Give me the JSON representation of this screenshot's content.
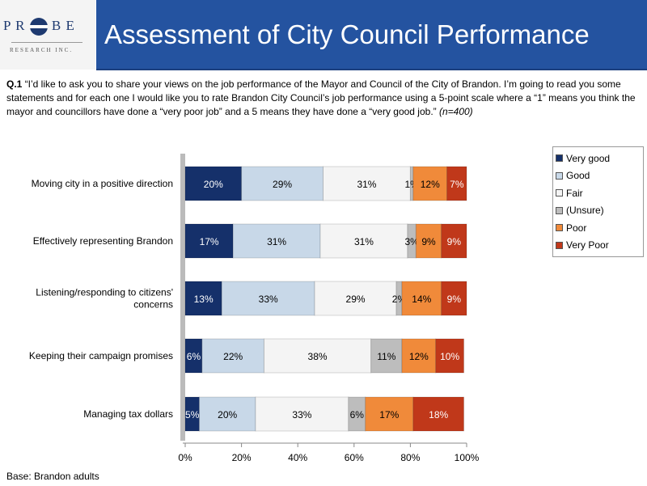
{
  "logo": {
    "word": "PR  BE",
    "sub": "RESEARCH INC."
  },
  "header": {
    "title": "Assessment of City Council Performance"
  },
  "question": {
    "label": "Q.1",
    "text": " “I’d like to ask you to share your views on the job performance of the Mayor and Council of the City of Brandon. I’m going to read you some statements and for each one I would like you to rate Brandon City Council’s job performance using a 5-point scale where a “1” means you think the mayor and councillors have done a “very poor job” and a 5 means they have done a “very good job.” ",
    "n": "(n=400)"
  },
  "base": "Base: Brandon adults",
  "chart_data": {
    "type": "bar",
    "orientation": "horizontal",
    "stacked": true,
    "categories": [
      "Moving city in a positive direction",
      "Effectively representing Brandon",
      "Listening/responding to citizens' concerns",
      "Keeping their campaign promises",
      "Managing tax dollars"
    ],
    "series": [
      {
        "name": "Very good",
        "color": "#15306a",
        "text": "#fff",
        "values": [
          20,
          17,
          13,
          6,
          5
        ]
      },
      {
        "name": "Good",
        "color": "#c8d8e8",
        "text": "#000",
        "values": [
          29,
          31,
          33,
          22,
          20
        ]
      },
      {
        "name": "Fair",
        "color": "#f4f4f4",
        "text": "#000",
        "values": [
          31,
          31,
          29,
          38,
          33
        ]
      },
      {
        "name": "(Unsure)",
        "color": "#bdbdbd",
        "text": "#000",
        "values": [
          1,
          3,
          2,
          11,
          6
        ]
      },
      {
        "name": "Poor",
        "color": "#f08a3a",
        "text": "#000",
        "values": [
          12,
          9,
          14,
          12,
          17
        ]
      },
      {
        "name": "Very Poor",
        "color": "#c0381a",
        "text": "#fff",
        "values": [
          7,
          9,
          9,
          10,
          18
        ]
      }
    ],
    "xticks": [
      "0%",
      "20%",
      "40%",
      "60%",
      "80%",
      "100%"
    ],
    "xlim": [
      0,
      100
    ],
    "legend": "right"
  }
}
